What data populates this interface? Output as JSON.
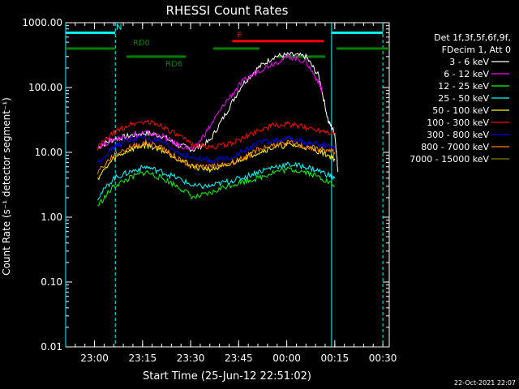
{
  "chart_data": {
    "type": "line",
    "title": "RHESSI Count Rates",
    "xlabel": "Start Time (25-Jun-12 22:51:02)",
    "ylabel": "Count Rate (s⁻¹ detector segment⁻¹)",
    "y_scale": "log",
    "ylim": [
      0.01,
      1000
    ],
    "xlim_minutes_after_start": [
      0,
      101
    ],
    "x_ticks": [
      {
        "label": "23:00",
        "t": 9
      },
      {
        "label": "23:15",
        "t": 24
      },
      {
        "label": "23:30",
        "t": 39
      },
      {
        "label": "23:45",
        "t": 54
      },
      {
        "label": "00:00",
        "t": 69
      },
      {
        "label": "00:15",
        "t": 84
      },
      {
        "label": "00:30",
        "t": 99
      }
    ],
    "y_ticks": [
      "0.01",
      "0.10",
      "1.00",
      "10.00",
      "100.00",
      "1000.00"
    ],
    "legend": {
      "position": "top-right",
      "header": [
        "Det 1f,3f,5f,6f,9f,",
        "FDecim 1, Att 0"
      ]
    },
    "series": [
      {
        "name": "3 - 6 keV",
        "color": "#ffffff",
        "points": [
          [
            10,
            12
          ],
          [
            15,
            16
          ],
          [
            20,
            18
          ],
          [
            25,
            20
          ],
          [
            30,
            18
          ],
          [
            35,
            13
          ],
          [
            40,
            11
          ],
          [
            45,
            15
          ],
          [
            50,
            40
          ],
          [
            55,
            110
          ],
          [
            60,
            200
          ],
          [
            65,
            300
          ],
          [
            70,
            320
          ],
          [
            75,
            300
          ],
          [
            79,
            150
          ],
          [
            82,
            30
          ],
          [
            84,
            20
          ],
          [
            85,
            5
          ]
        ]
      },
      {
        "name": "6 - 12 keV",
        "color": "#ff00ff",
        "points": [
          [
            10,
            12
          ],
          [
            15,
            16
          ],
          [
            20,
            18
          ],
          [
            25,
            20
          ],
          [
            30,
            18
          ],
          [
            35,
            13
          ],
          [
            40,
            11
          ],
          [
            45,
            25
          ],
          [
            50,
            60
          ],
          [
            55,
            120
          ],
          [
            60,
            180
          ],
          [
            65,
            240
          ],
          [
            70,
            300
          ],
          [
            75,
            250
          ],
          [
            79,
            120
          ],
          [
            80,
            90
          ]
        ]
      },
      {
        "name": "12 - 25 keV",
        "color": "#00ff00",
        "points": [
          [
            10,
            1.5
          ],
          [
            15,
            3
          ],
          [
            20,
            4
          ],
          [
            25,
            5
          ],
          [
            30,
            4
          ],
          [
            35,
            3
          ],
          [
            40,
            2
          ],
          [
            45,
            2.3
          ],
          [
            50,
            3
          ],
          [
            55,
            3.5
          ],
          [
            60,
            4
          ],
          [
            65,
            5
          ],
          [
            70,
            5.5
          ],
          [
            75,
            5
          ],
          [
            80,
            4
          ],
          [
            84,
            3
          ]
        ]
      },
      {
        "name": "25 - 50 keV",
        "color": "#00ffff",
        "points": [
          [
            10,
            2
          ],
          [
            15,
            4
          ],
          [
            20,
            5
          ],
          [
            25,
            6
          ],
          [
            30,
            5
          ],
          [
            35,
            4
          ],
          [
            40,
            3
          ],
          [
            45,
            3
          ],
          [
            50,
            3.5
          ],
          [
            55,
            4
          ],
          [
            60,
            5
          ],
          [
            65,
            6
          ],
          [
            70,
            6.5
          ],
          [
            75,
            6
          ],
          [
            80,
            5
          ],
          [
            84,
            4
          ]
        ]
      },
      {
        "name": "50 - 100 keV",
        "color": "#ffff00",
        "points": [
          [
            10,
            4
          ],
          [
            15,
            8
          ],
          [
            20,
            11
          ],
          [
            25,
            13
          ],
          [
            30,
            11
          ],
          [
            35,
            8
          ],
          [
            40,
            6
          ],
          [
            45,
            5.5
          ],
          [
            50,
            6
          ],
          [
            55,
            8
          ],
          [
            60,
            10
          ],
          [
            65,
            12
          ],
          [
            70,
            13
          ],
          [
            75,
            12
          ],
          [
            80,
            10
          ],
          [
            84,
            8
          ]
        ]
      },
      {
        "name": "100 - 300 keV",
        "color": "#ff0000",
        "points": [
          [
            10,
            12
          ],
          [
            15,
            20
          ],
          [
            20,
            27
          ],
          [
            25,
            30
          ],
          [
            30,
            26
          ],
          [
            35,
            18
          ],
          [
            40,
            13
          ],
          [
            45,
            12
          ],
          [
            50,
            13
          ],
          [
            55,
            16
          ],
          [
            60,
            22
          ],
          [
            65,
            26
          ],
          [
            70,
            27
          ],
          [
            75,
            24
          ],
          [
            80,
            22
          ],
          [
            84,
            20
          ]
        ]
      },
      {
        "name": "300 - 800 keV",
        "color": "#0000ff",
        "points": [
          [
            10,
            7
          ],
          [
            15,
            12
          ],
          [
            20,
            16
          ],
          [
            25,
            17
          ],
          [
            30,
            14
          ],
          [
            35,
            10
          ],
          [
            40,
            8
          ],
          [
            45,
            7.5
          ],
          [
            50,
            8
          ],
          [
            55,
            10
          ],
          [
            60,
            14
          ],
          [
            65,
            15
          ],
          [
            70,
            16
          ],
          [
            75,
            14
          ],
          [
            80,
            13
          ],
          [
            84,
            12
          ]
        ]
      },
      {
        "name": "800 - 7000 keV",
        "color": "#ff8000",
        "points": [
          [
            10,
            5
          ],
          [
            15,
            9
          ],
          [
            20,
            12
          ],
          [
            25,
            14
          ],
          [
            30,
            12
          ],
          [
            35,
            8
          ],
          [
            40,
            6
          ],
          [
            45,
            6
          ],
          [
            50,
            6.5
          ],
          [
            55,
            8
          ],
          [
            60,
            11
          ],
          [
            65,
            13
          ],
          [
            70,
            14
          ],
          [
            75,
            12
          ],
          [
            80,
            11
          ],
          [
            84,
            10
          ]
        ]
      },
      {
        "name": "7000 - 15000 keV",
        "color": "#808000",
        "points": []
      }
    ],
    "annotations": [
      {
        "label": "N",
        "color": "#00ffff",
        "start": 0,
        "end": 15.5,
        "level": 700
      },
      {
        "label": "",
        "color": "#00ffff",
        "start": 83,
        "end": 99,
        "level": 700
      },
      {
        "label": "RD0",
        "color": "#008000",
        "start": 0,
        "end": 15.5,
        "level": 400
      },
      {
        "label": "RD6",
        "color": "#008000",
        "start": 19,
        "end": 37.5,
        "level": 300
      },
      {
        "label": "",
        "color": "#008000",
        "start": 46,
        "end": 60.5,
        "level": 400
      },
      {
        "label": "",
        "color": "#008000",
        "start": 66,
        "end": 81,
        "level": 300
      },
      {
        "label": "",
        "color": "#008000",
        "start": 84.5,
        "end": 101,
        "level": 400
      },
      {
        "label": "F",
        "color": "#ff0000",
        "start": 52,
        "end": 80.5,
        "level": 520
      }
    ],
    "vertical_lines": [
      {
        "t": 0,
        "color": "#00ffff",
        "style": "solid"
      },
      {
        "t": 15.5,
        "color": "#00ffff",
        "style": "dashed"
      },
      {
        "t": 83,
        "color": "#00ffff",
        "style": "solid"
      },
      {
        "t": 99,
        "color": "#00ffff",
        "style": "dashed"
      }
    ],
    "grid": false
  },
  "footer_timestamp": "22-Oct-2021 22:07"
}
